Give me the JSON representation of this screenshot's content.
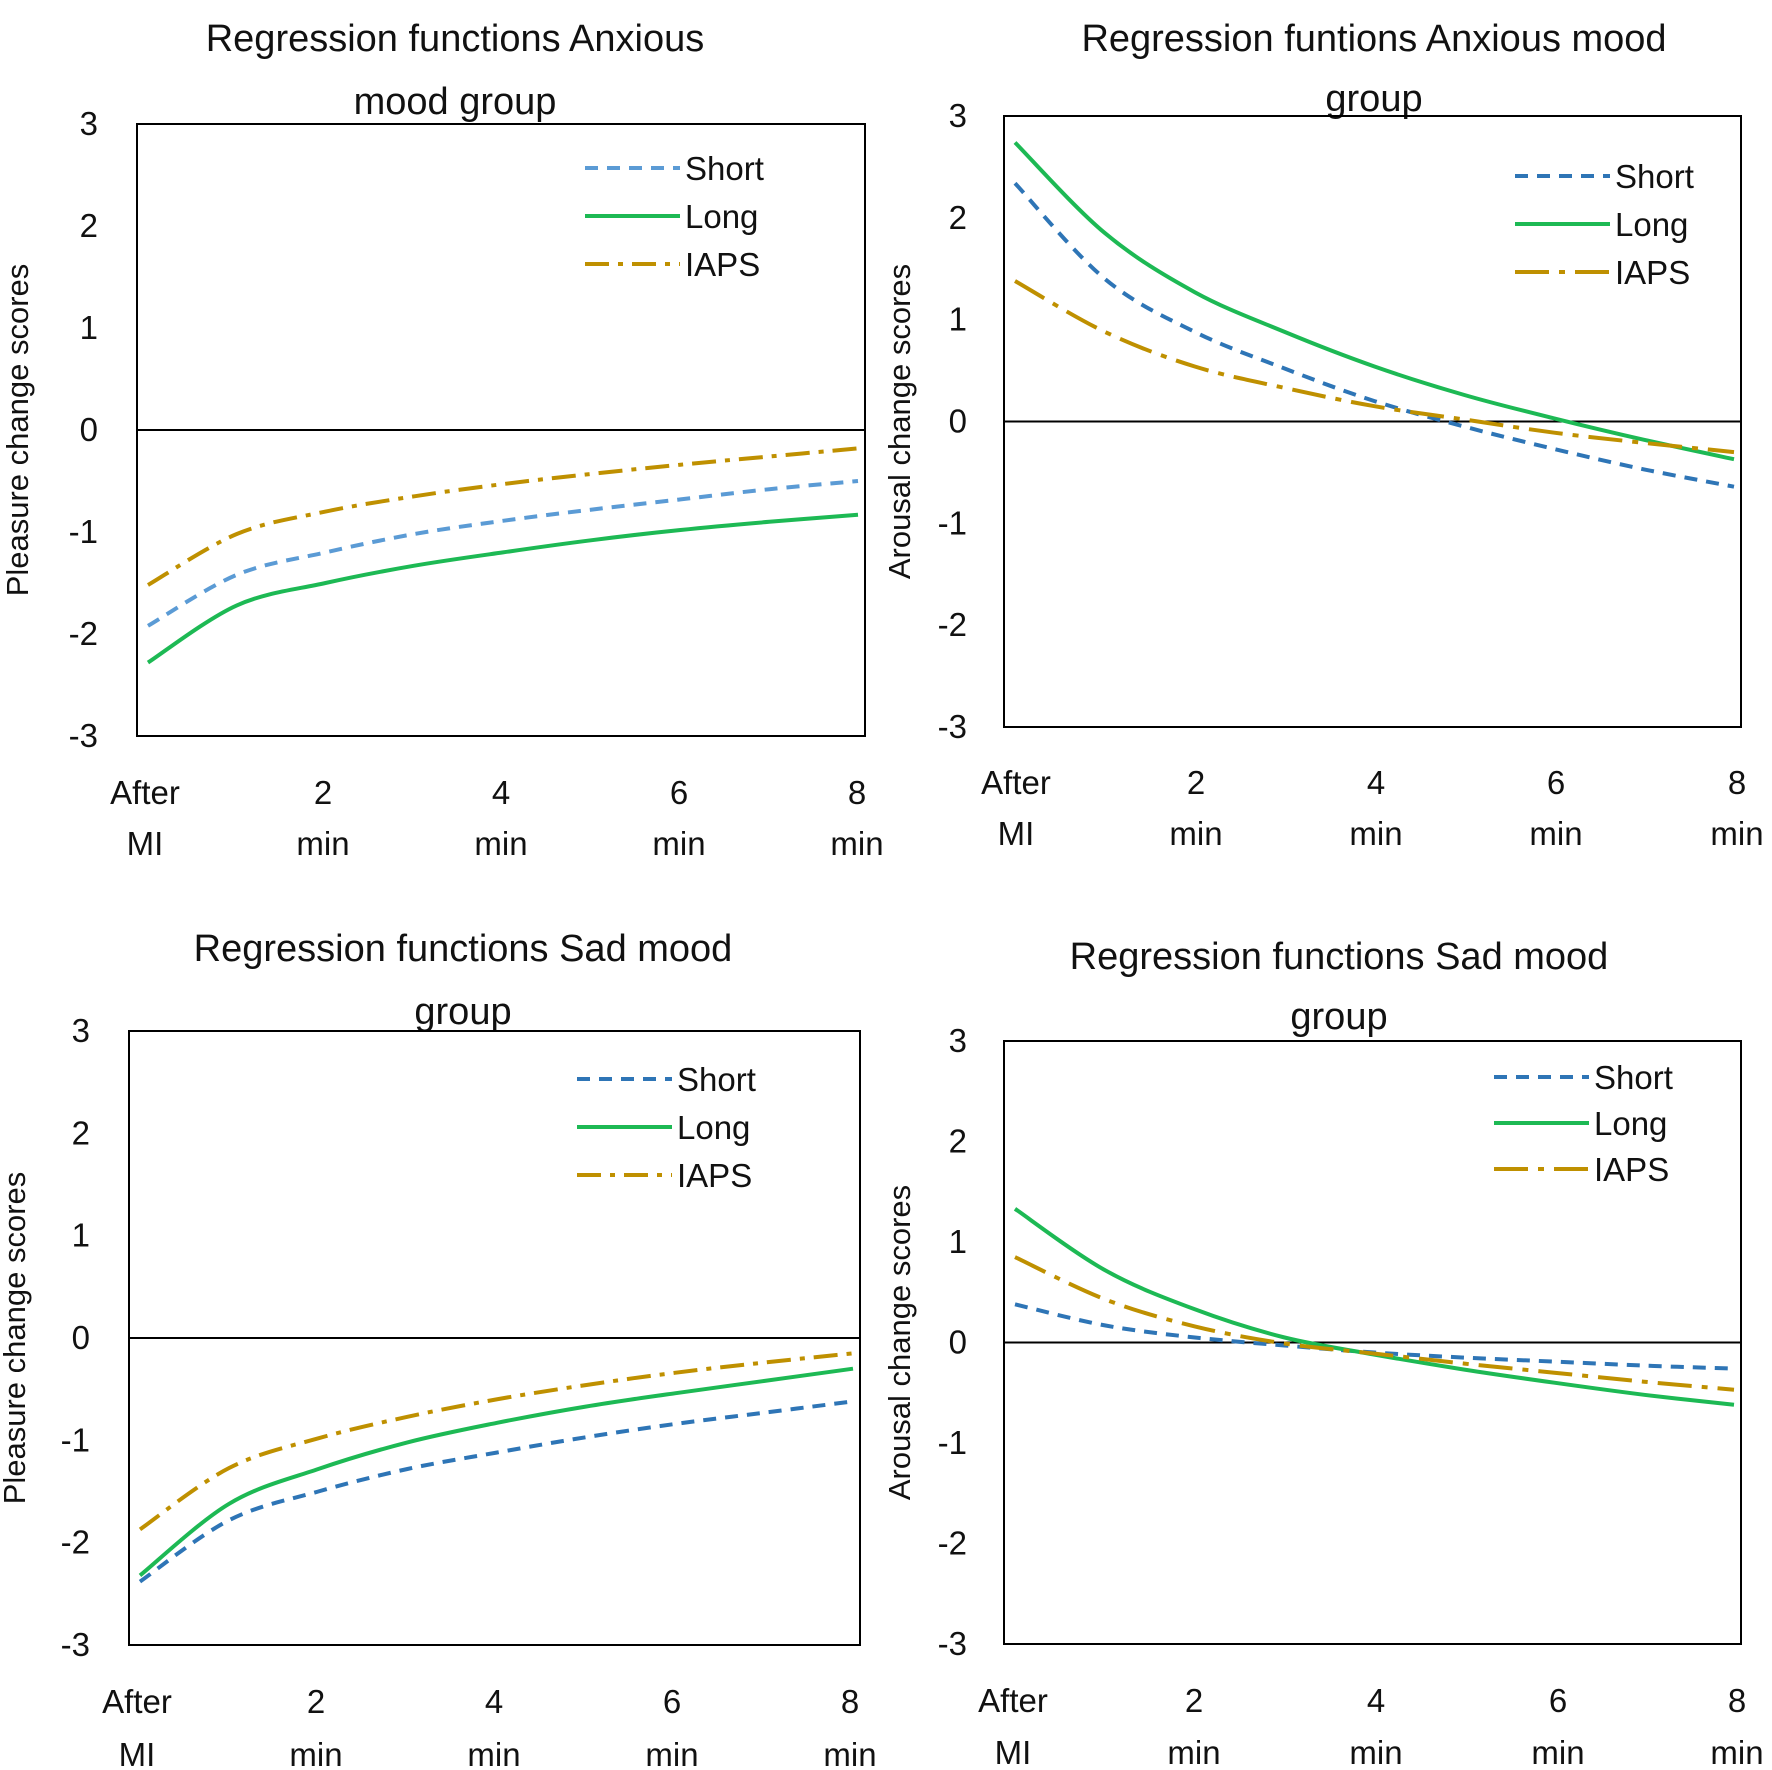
{
  "chart_data": [
    {
      "type": "line",
      "title": [
        "Regression functions Anxious",
        "mood group"
      ],
      "ylabel": "Pleasure change scores",
      "xlabel": "",
      "ylim": [
        -3,
        3
      ],
      "yticks": [
        -3,
        -2,
        -1,
        0,
        1,
        2,
        3
      ],
      "x": [
        0,
        1,
        2,
        3,
        4,
        5,
        6,
        7,
        8
      ],
      "xticks": [
        {
          "line1": "After",
          "line2": "MI"
        },
        {
          "line1": "2",
          "line2": "min"
        },
        {
          "line1": "4",
          "line2": "min"
        },
        {
          "line1": "6",
          "line2": "min"
        },
        {
          "line1": "8",
          "line2": "min"
        }
      ],
      "legend_position": "top-right",
      "series": [
        {
          "name": "Short",
          "values": [
            -1.92,
            -1.42,
            -1.2,
            -1.02,
            -0.89,
            -0.78,
            -0.68,
            -0.58,
            -0.5
          ],
          "color": "#5b9bd5",
          "style": "dash"
        },
        {
          "name": "Long",
          "values": [
            -2.28,
            -1.72,
            -1.5,
            -1.33,
            -1.2,
            -1.08,
            -0.98,
            -0.9,
            -0.83
          ],
          "color": "#1db954",
          "style": "solid"
        },
        {
          "name": "IAPS",
          "values": [
            -1.52,
            -1.02,
            -0.8,
            -0.65,
            -0.53,
            -0.43,
            -0.34,
            -0.26,
            -0.18
          ],
          "color": "#bf9000",
          "style": "dashdot"
        }
      ]
    },
    {
      "type": "line",
      "title": [
        "Regression funtions Anxious mood",
        "group"
      ],
      "ylabel": "Arousal change scores",
      "xlabel": "",
      "ylim": [
        -3,
        3
      ],
      "yticks": [
        -3,
        -2,
        -1,
        0,
        1,
        2,
        3
      ],
      "x": [
        0,
        1,
        2,
        3,
        4,
        5,
        6,
        7,
        8
      ],
      "xticks": [
        {
          "line1": "After",
          "line2": "MI"
        },
        {
          "line1": "2",
          "line2": "min"
        },
        {
          "line1": "4",
          "line2": "min"
        },
        {
          "line1": "6",
          "line2": "min"
        },
        {
          "line1": "8",
          "line2": "min"
        }
      ],
      "legend_position": "top-right",
      "series": [
        {
          "name": "Short",
          "values": [
            2.34,
            1.4,
            0.88,
            0.52,
            0.2,
            -0.05,
            -0.27,
            -0.47,
            -0.64
          ],
          "color": "#2e75b6",
          "style": "dash"
        },
        {
          "name": "Long",
          "values": [
            2.74,
            1.85,
            1.27,
            0.88,
            0.54,
            0.26,
            0.03,
            -0.18,
            -0.37
          ],
          "color": "#1db954",
          "style": "solid"
        },
        {
          "name": "IAPS",
          "values": [
            1.38,
            0.88,
            0.54,
            0.33,
            0.15,
            0.02,
            -0.11,
            -0.21,
            -0.3
          ],
          "color": "#bf9000",
          "style": "longdashdot"
        }
      ]
    },
    {
      "type": "line",
      "title": [
        "Regression functions Sad mood",
        "group"
      ],
      "ylabel": "Pleasure change scores",
      "xlabel": "",
      "ylim": [
        -3,
        3
      ],
      "yticks": [
        -3,
        -2,
        -1,
        0,
        1,
        2,
        3
      ],
      "x": [
        0,
        1,
        2,
        3,
        4,
        5,
        6,
        7,
        8
      ],
      "xticks": [
        {
          "line1": "After",
          "line2": "MI"
        },
        {
          "line1": "2",
          "line2": "min"
        },
        {
          "line1": "4",
          "line2": "min"
        },
        {
          "line1": "6",
          "line2": "min"
        },
        {
          "line1": "8",
          "line2": "min"
        }
      ],
      "legend_position": "top-right",
      "series": [
        {
          "name": "Short",
          "values": [
            -2.38,
            -1.78,
            -1.5,
            -1.28,
            -1.12,
            -0.97,
            -0.84,
            -0.73,
            -0.62
          ],
          "color": "#2e75b6",
          "style": "dash"
        },
        {
          "name": "Long",
          "values": [
            -2.32,
            -1.62,
            -1.28,
            -1.02,
            -0.83,
            -0.67,
            -0.54,
            -0.42,
            -0.3
          ],
          "color": "#1db954",
          "style": "solid"
        },
        {
          "name": "IAPS",
          "values": [
            -1.87,
            -1.27,
            -0.98,
            -0.77,
            -0.6,
            -0.46,
            -0.34,
            -0.24,
            -0.15
          ],
          "color": "#bf9000",
          "style": "dashdot"
        }
      ]
    },
    {
      "type": "line",
      "title": [
        "Regression functions Sad mood",
        "group"
      ],
      "ylabel": "Arousal change scores",
      "xlabel": "",
      "ylim": [
        -3,
        3
      ],
      "yticks": [
        -3,
        -2,
        -1,
        0,
        1,
        2,
        3
      ],
      "x": [
        0,
        1,
        2,
        3,
        4,
        5,
        6,
        7,
        8
      ],
      "xticks": [
        {
          "line1": "After",
          "line2": "MI"
        },
        {
          "line1": "2",
          "line2": "min"
        },
        {
          "line1": "4",
          "line2": "min"
        },
        {
          "line1": "6",
          "line2": "min"
        },
        {
          "line1": "8",
          "line2": "min"
        }
      ],
      "legend_position": "top-right",
      "series": [
        {
          "name": "Short",
          "values": [
            0.38,
            0.17,
            0.05,
            -0.03,
            -0.1,
            -0.15,
            -0.19,
            -0.23,
            -0.26
          ],
          "color": "#2e75b6",
          "style": "dash"
        },
        {
          "name": "Long",
          "values": [
            1.33,
            0.72,
            0.33,
            0.05,
            -0.12,
            -0.27,
            -0.4,
            -0.52,
            -0.62
          ],
          "color": "#1db954",
          "style": "solid"
        },
        {
          "name": "IAPS",
          "values": [
            0.85,
            0.43,
            0.16,
            -0.01,
            -0.11,
            -0.21,
            -0.3,
            -0.39,
            -0.47
          ],
          "color": "#bf9000",
          "style": "longdashdot"
        }
      ]
    }
  ]
}
